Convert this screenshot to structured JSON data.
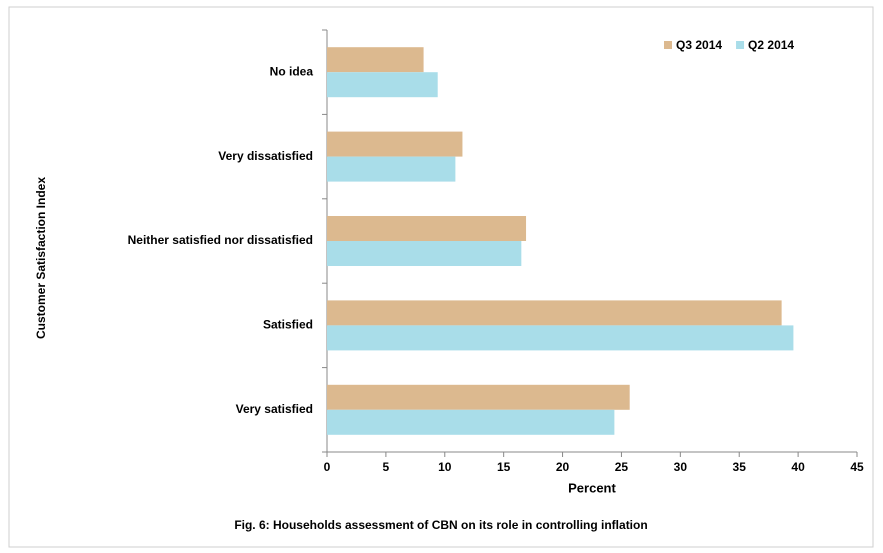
{
  "chart_data": {
    "type": "hbar",
    "title": "Fig. 6:  Households  assessment  of  CBN  on its role in  controlling inflation",
    "xlabel": "Percent",
    "ylabel": "Customer  Satisfaction Index",
    "categories": [
      "No idea",
      "Very dissatisfied",
      "Neither satisfied nor dissatisfied",
      "Satisfied",
      "Very satisfied"
    ],
    "series": [
      {
        "name": "Q3 2014",
        "color": "#dcb98f",
        "values": [
          8.2,
          11.5,
          16.9,
          38.6,
          25.7
        ]
      },
      {
        "name": "Q2 2014",
        "color": "#a9dde9",
        "values": [
          9.4,
          10.9,
          16.5,
          39.6,
          24.4
        ]
      }
    ],
    "xlim": [
      0,
      45
    ],
    "xticks": [
      0,
      5,
      10,
      15,
      20,
      25,
      30,
      35,
      40,
      45
    ],
    "grid": false,
    "legend": "top-right"
  }
}
